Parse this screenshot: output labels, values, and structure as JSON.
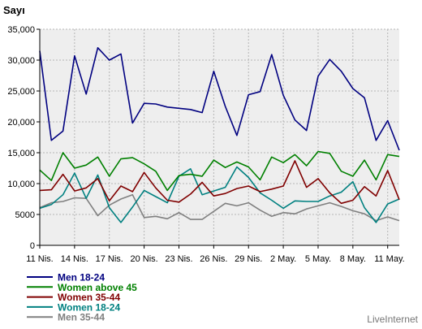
{
  "chart_data": {
    "type": "line",
    "title": "",
    "xlabel": "",
    "ylabel": "Sayı",
    "ylim": [
      0,
      35000
    ],
    "y_ticks": [
      "0",
      "5000",
      "10,000",
      "15,000",
      "20,000",
      "25,000",
      "30,000",
      "35,000"
    ],
    "y_tick_values": [
      0,
      5000,
      10000,
      15000,
      20000,
      25000,
      30000,
      35000
    ],
    "x_tick_labels": [
      "11 Nis.",
      "14 Nis.",
      "17 Nis.",
      "20 Nis.",
      "23 Nis.",
      "26 Nis.",
      "29 Nis.",
      "2 May.",
      "5 May.",
      "8 May.",
      "11 May."
    ],
    "x_tick_index": [
      0,
      3,
      6,
      9,
      12,
      15,
      18,
      21,
      24,
      27,
      30
    ],
    "grid": true,
    "legend_position": "bottom-left",
    "series": [
      {
        "name": "Men 18-24",
        "color": "#000080",
        "values": [
          31500,
          17000,
          18500,
          30700,
          24500,
          32000,
          30000,
          31000,
          19800,
          23000,
          22900,
          22400,
          22200,
          22000,
          21500,
          28200,
          22500,
          17800,
          24400,
          24900,
          30900,
          24300,
          20300,
          18600,
          27400,
          30100,
          28200,
          25400,
          23900,
          17000,
          20200,
          15400
        ]
      },
      {
        "name": "Women above 45",
        "color": "#008000",
        "values": [
          12200,
          10500,
          15000,
          12500,
          13000,
          14300,
          11200,
          14000,
          14200,
          13200,
          12000,
          8900,
          11300,
          11500,
          11200,
          13800,
          12600,
          13500,
          12700,
          10600,
          14300,
          13400,
          14700,
          12900,
          15200,
          14900,
          12000,
          11200,
          13800,
          10600,
          14700,
          14400
        ]
      },
      {
        "name": "Women 35-44",
        "color": "#800000",
        "values": [
          8900,
          9000,
          11500,
          8800,
          9300,
          10800,
          7200,
          9600,
          8700,
          11800,
          9300,
          7300,
          7000,
          8300,
          10200,
          8000,
          8400,
          9200,
          9600,
          8700,
          9100,
          9600,
          13700,
          9400,
          10800,
          8500,
          6800,
          7300,
          9500,
          8000,
          12100,
          7400
        ]
      },
      {
        "name": "Women 18-24",
        "color": "#008080",
        "values": [
          6000,
          6600,
          8200,
          11700,
          7600,
          11400,
          6100,
          3700,
          6200,
          8900,
          7900,
          6900,
          11200,
          12400,
          8200,
          8800,
          9400,
          12700,
          11000,
          8500,
          7300,
          6000,
          7200,
          7100,
          7100,
          8000,
          8600,
          10300,
          6100,
          3700,
          6700,
          7500
        ]
      },
      {
        "name": "Men 35-44",
        "color": "#808080",
        "values": [
          6100,
          6900,
          7100,
          7700,
          7600,
          4800,
          6500,
          7500,
          8200,
          4500,
          4700,
          4300,
          5300,
          4200,
          4200,
          5500,
          6800,
          6400,
          6900,
          5700,
          4700,
          5300,
          5100,
          5900,
          6400,
          6900,
          6300,
          5600,
          5100,
          4000,
          4600,
          4000
        ]
      }
    ]
  },
  "branding": {
    "text": "LiveInternet"
  }
}
